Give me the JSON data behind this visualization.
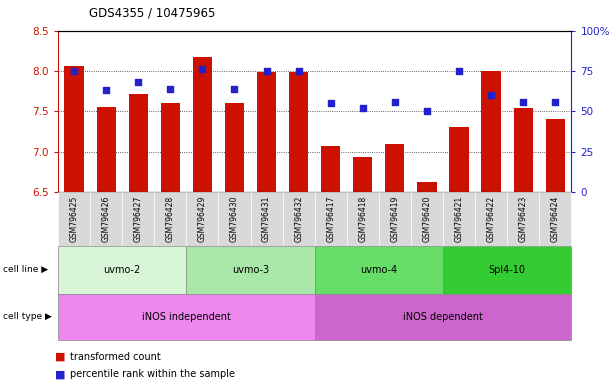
{
  "title": "GDS4355 / 10475965",
  "samples": [
    "GSM796425",
    "GSM796426",
    "GSM796427",
    "GSM796428",
    "GSM796429",
    "GSM796430",
    "GSM796431",
    "GSM796432",
    "GSM796417",
    "GSM796418",
    "GSM796419",
    "GSM796420",
    "GSM796421",
    "GSM796422",
    "GSM796423",
    "GSM796424"
  ],
  "bar_values": [
    8.06,
    7.55,
    7.72,
    7.6,
    8.17,
    7.6,
    7.99,
    7.99,
    7.07,
    6.93,
    7.09,
    6.62,
    7.3,
    8.0,
    7.54,
    7.41
  ],
  "dot_pct": [
    75,
    63,
    68,
    64,
    76,
    64,
    75,
    75,
    55,
    52,
    56,
    50,
    75,
    60,
    56,
    56
  ],
  "ylim_left": [
    6.5,
    8.5
  ],
  "ylim_right": [
    0,
    100
  ],
  "bar_color": "#cc1100",
  "dot_color": "#2222cc",
  "grid_color": "#333333",
  "cell_lines": [
    {
      "label": "uvmo-2",
      "start": 0,
      "end": 3,
      "color": "#d8f5d8"
    },
    {
      "label": "uvmo-3",
      "start": 4,
      "end": 7,
      "color": "#aae8aa"
    },
    {
      "label": "uvmo-4",
      "start": 8,
      "end": 11,
      "color": "#66dd66"
    },
    {
      "label": "Spl4-10",
      "start": 12,
      "end": 15,
      "color": "#33cc33"
    }
  ],
  "cell_types": [
    {
      "label": "iNOS independent",
      "start": 0,
      "end": 7,
      "color": "#ee88ee"
    },
    {
      "label": "iNOS dependent",
      "start": 8,
      "end": 15,
      "color": "#cc66cc"
    }
  ],
  "legend_items": [
    {
      "label": "transformed count",
      "color": "#cc1100"
    },
    {
      "label": "percentile rank within the sample",
      "color": "#2222cc"
    }
  ],
  "tick_labels_left": [
    6.5,
    7.0,
    7.5,
    8.0,
    8.5
  ],
  "tick_labels_right": [
    0,
    25,
    50,
    75,
    100
  ],
  "bar_width": 0.6
}
